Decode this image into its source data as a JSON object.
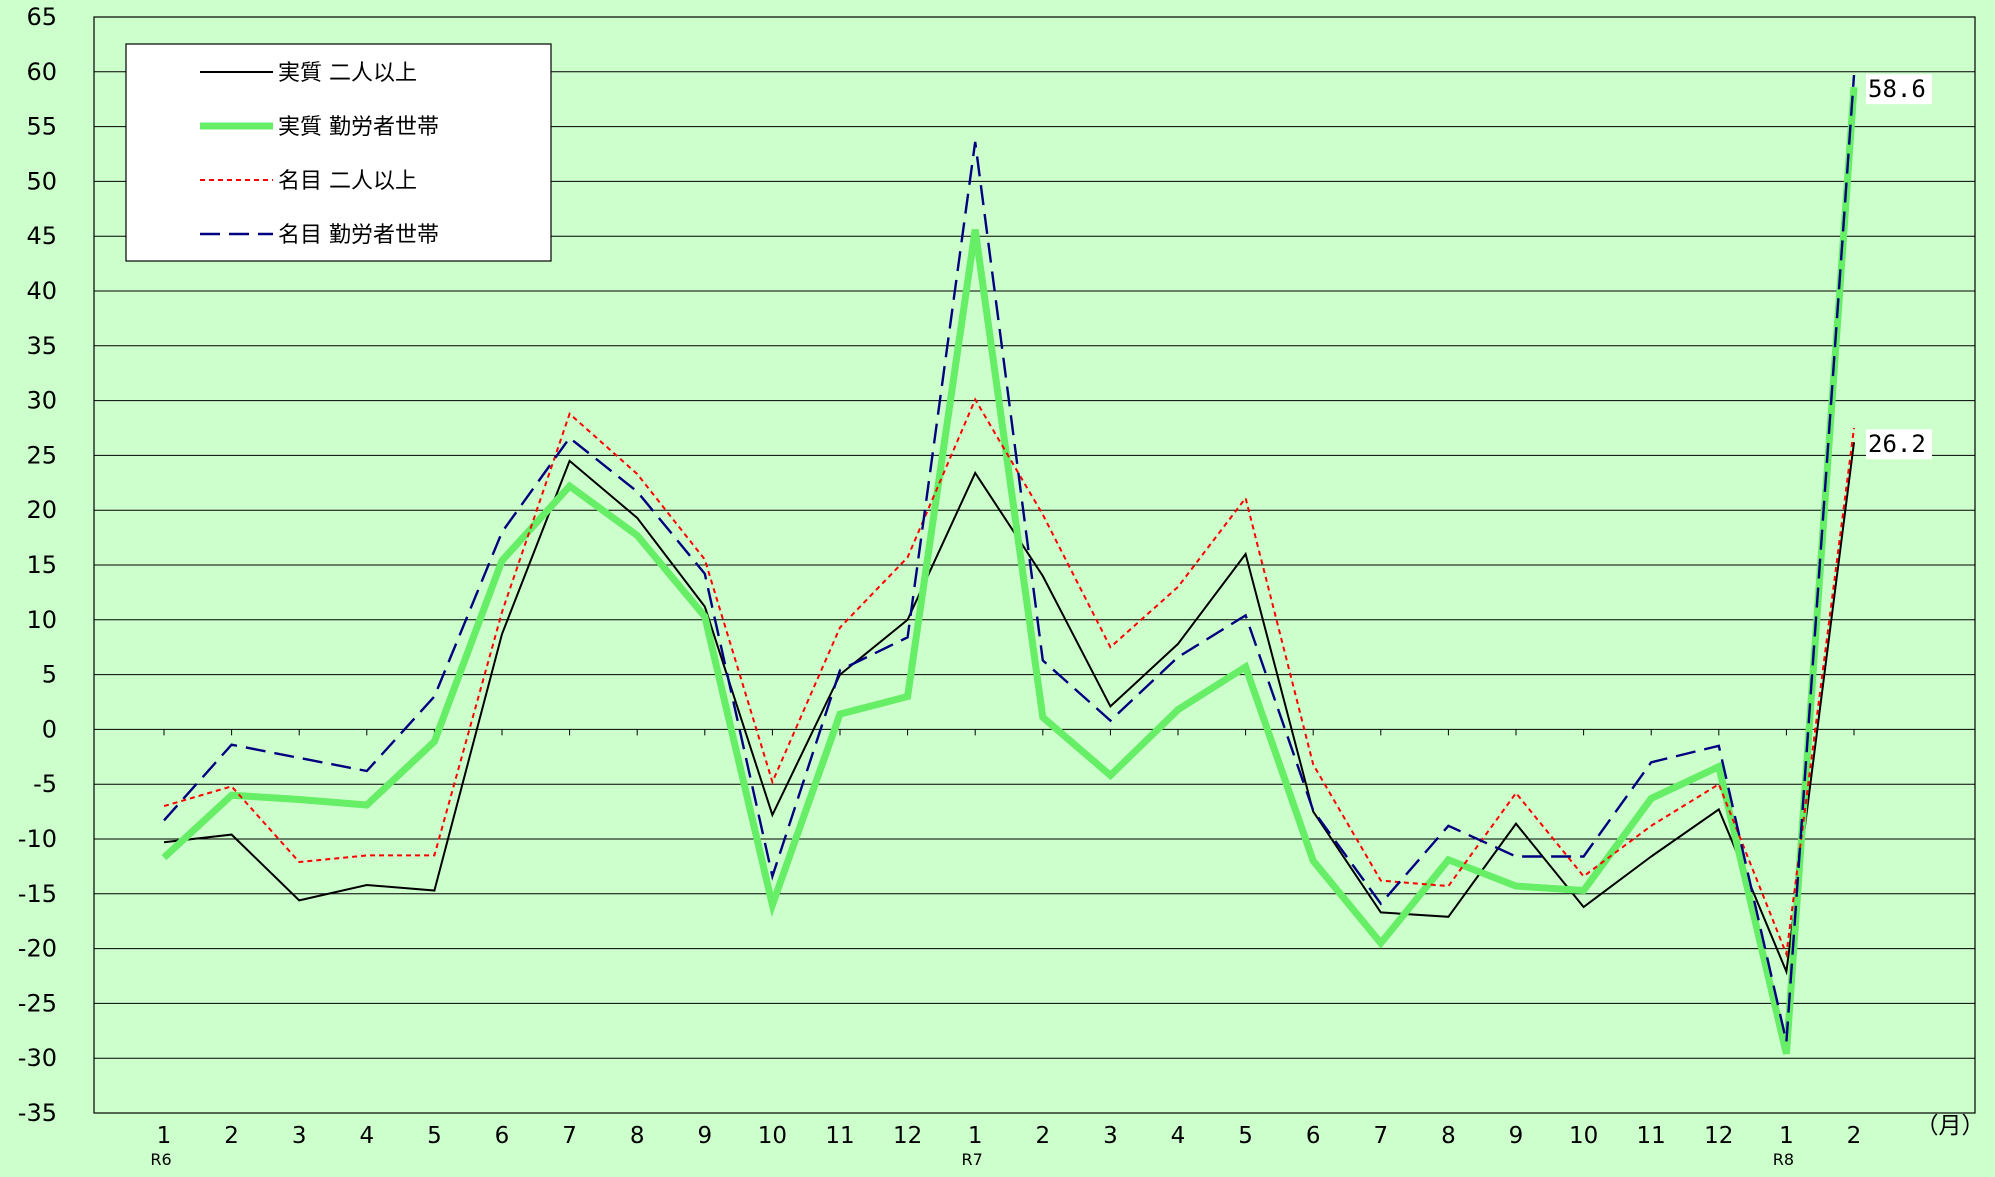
{
  "chart_data": {
    "type": "line",
    "x_unit": "（月）",
    "x_labels": [
      "1",
      "2",
      "3",
      "4",
      "5",
      "6",
      "7",
      "8",
      "9",
      "10",
      "11",
      "12",
      "1",
      "2",
      "3",
      "4",
      "5",
      "6",
      "7",
      "8",
      "9",
      "10",
      "11",
      "12",
      "1",
      "2"
    ],
    "era_labels": [
      {
        "index": 0,
        "label": "R6"
      },
      {
        "index": 12,
        "label": "R7"
      },
      {
        "index": 24,
        "label": "R8"
      }
    ],
    "ylim": [
      -35,
      65
    ],
    "y_ticks": [
      65,
      60,
      55,
      50,
      45,
      40,
      35,
      30,
      25,
      20,
      15,
      10,
      5,
      0,
      -5,
      -10,
      -15,
      -20,
      -25,
      -30,
      -35
    ],
    "grid": "horizontal",
    "legend_position": "top-left",
    "series": [
      {
        "name": "実質 二人以上",
        "color": "#000000",
        "style": "solid",
        "values": [
          -10.3,
          -9.6,
          -15.6,
          -14.2,
          -14.7,
          8.7,
          24.5,
          19.3,
          11.2,
          -7.8,
          5.0,
          10.0,
          23.4,
          14.0,
          2.1,
          7.8,
          16.0,
          -7.5,
          -16.7,
          -17.1,
          -8.6,
          -16.2,
          -11.6,
          -7.3,
          -22.1,
          26.2
        ]
      },
      {
        "name": "実質 勤労者世帯",
        "color": "#66ee66",
        "style": "thick",
        "values": [
          -11.7,
          -6.0,
          -6.4,
          -6.9,
          -1.1,
          15.4,
          22.2,
          17.7,
          10.3,
          -16.0,
          1.4,
          3.0,
          45.6,
          1.1,
          -4.2,
          1.8,
          5.7,
          -12.0,
          -19.5,
          -11.9,
          -14.3,
          -14.7,
          -6.3,
          -3.4,
          -29.6,
          58.6
        ]
      },
      {
        "name": "名目 二人以上",
        "color": "#ff0000",
        "style": "dotted",
        "values": [
          -7.0,
          -5.2,
          -12.1,
          -11.5,
          -11.5,
          10.7,
          28.8,
          23.3,
          15.5,
          -4.8,
          9.3,
          15.7,
          30.1,
          19.6,
          7.5,
          13.0,
          21.1,
          -3.2,
          -13.8,
          -14.3,
          -5.8,
          -13.4,
          -8.8,
          -5.0,
          -20.5,
          27.5
        ]
      },
      {
        "name": "名目 勤労者世帯",
        "color": "#000080",
        "style": "dashed",
        "values": [
          -8.3,
          -1.4,
          -2.6,
          -3.8,
          3.0,
          18.0,
          26.6,
          21.7,
          14.2,
          -13.4,
          5.4,
          8.4,
          53.6,
          6.3,
          0.8,
          6.6,
          10.4,
          -7.4,
          -15.9,
          -8.8,
          -11.6,
          -11.6,
          -3.0,
          -1.5,
          -28.5,
          59.7
        ]
      }
    ],
    "annotations": [
      {
        "series_index": 1,
        "point_index": 25,
        "label": "58.6"
      },
      {
        "series_index": 0,
        "point_index": 25,
        "label": "26.2"
      }
    ]
  }
}
